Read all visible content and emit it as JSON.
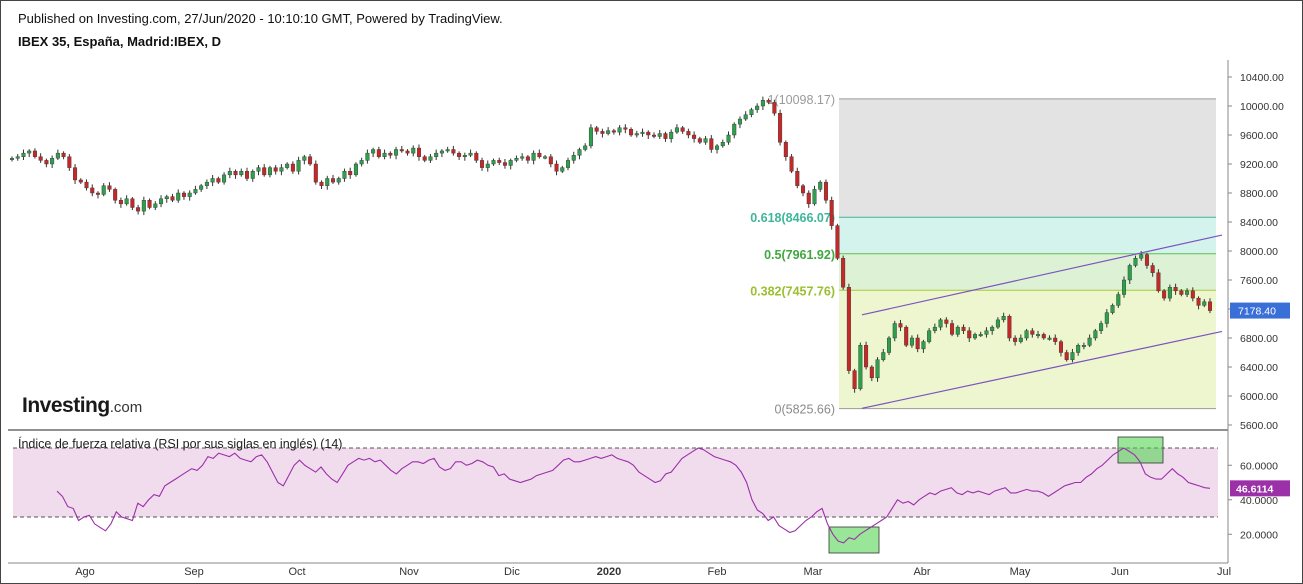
{
  "header": {
    "published": "Published on Investing.com, 27/Jun/2020 - 10:10:10 GMT, Powered by TradingView.",
    "symbol": "IBEX 35, España, Madrid:IBEX, D"
  },
  "branding": {
    "logo_main": "Investing",
    "logo_suffix": ".com"
  },
  "colors": {
    "up": "#2e9f4c",
    "down": "#c62828",
    "rsi_line": "#9b30a8",
    "rsi_band": "#f1dcee",
    "channel": "#7b52c0",
    "price_label": "#3b6fd8",
    "rsi_label": "#9b30a8"
  },
  "chart_data": [
    {
      "type": "candlestick",
      "title": "IBEX 35, España, Madrid:IBEX, D",
      "ylim": [
        5560,
        10500
      ],
      "y_ticks": [
        "10400.00",
        "10000.00",
        "9600.00",
        "9200.00",
        "8800.00",
        "8400.00",
        "8000.00",
        "7600.00",
        "7200.00",
        "6800.00",
        "6400.00",
        "6000.00",
        "5600.00"
      ],
      "x_ticks": [
        "Ago",
        "Sep",
        "Oct",
        "Nov",
        "Dic",
        "2020",
        "Feb",
        "Mar",
        "Abr",
        "May",
        "Jun",
        "Jul"
      ],
      "last_price_label": "7178.40",
      "fibonacci": [
        {
          "label": "1(10098.17)",
          "value": 10098.17
        },
        {
          "label": "0.618(8466.07)",
          "value": 8466.07
        },
        {
          "label": "0.5(7961.92)",
          "value": 7961.92
        },
        {
          "label": "0.382(7457.76)",
          "value": 7457.76
        },
        {
          "label": "0(5825.66)",
          "value": 5825.66
        }
      ],
      "channel": {
        "upper": [
          [
            "Mar 10",
            7120
          ],
          [
            "Jun 30",
            8220
          ]
        ],
        "lower": [
          [
            "Mar 12",
            5830
          ],
          [
            "Jun 30",
            6890
          ]
        ]
      },
      "closes_approx": [
        9280,
        9300,
        9350,
        9380,
        9300,
        9250,
        9200,
        9280,
        9350,
        9300,
        9150,
        8980,
        8950,
        8870,
        8800,
        8780,
        8900,
        8850,
        8700,
        8650,
        8720,
        8600,
        8550,
        8700,
        8600,
        8650,
        8720,
        8750,
        8700,
        8800,
        8750,
        8800,
        8850,
        8900,
        8950,
        9000,
        8950,
        9050,
        9100,
        9050,
        9100,
        9000,
        9100,
        9150,
        9050,
        9150,
        9100,
        9150,
        9200,
        9100,
        9250,
        9300,
        9200,
        8950,
        8900,
        9000,
        8950,
        9000,
        9100,
        9050,
        9200,
        9250,
        9350,
        9400,
        9300,
        9350,
        9320,
        9400,
        9380,
        9350,
        9420,
        9300,
        9250,
        9300,
        9350,
        9380,
        9400,
        9350,
        9300,
        9320,
        9350,
        9250,
        9150,
        9200,
        9250,
        9220,
        9180,
        9250,
        9280,
        9300,
        9250,
        9350,
        9300,
        9300,
        9200,
        9100,
        9150,
        9250,
        9320,
        9400,
        9450,
        9700,
        9650,
        9620,
        9660,
        9640,
        9700,
        9680,
        9600,
        9620,
        9640,
        9600,
        9580,
        9620,
        9550,
        9640,
        9700,
        9650,
        9600,
        9550,
        9500,
        9550,
        9400,
        9450,
        9500,
        9600,
        9750,
        9820,
        9880,
        9950,
        10000,
        10080,
        10050,
        9900,
        9500,
        9300,
        9100,
        8900,
        8800,
        8650,
        8850,
        8950,
        8700,
        8350,
        7900,
        7500,
        6350,
        6100,
        6700,
        6400,
        6250,
        6500,
        6600,
        6800,
        7000,
        6950,
        6700,
        6800,
        6650,
        6750,
        6900,
        6950,
        7050,
        7000,
        6850,
        6950,
        6900,
        6800,
        6850,
        6850,
        6900,
        6950,
        7050,
        7100,
        6800,
        6750,
        6800,
        6900,
        6850,
        6850,
        6800,
        6800,
        6750,
        6600,
        6500,
        6600,
        6700,
        6700,
        6800,
        6900,
        7000,
        7150,
        7250,
        7400,
        7600,
        7800,
        7900,
        7950,
        7800,
        7700,
        7450,
        7350,
        7500,
        7450,
        7400,
        7450,
        7350,
        7250,
        7300,
        7178
      ]
    },
    {
      "type": "line",
      "title": "Índice de fuerza relativa (RSI por sus siglas en inglés) (14)",
      "ylim": [
        10,
        75
      ],
      "y_ticks": [
        "60.0000",
        "40.0000",
        "20.0000"
      ],
      "overbought": 70,
      "oversold": 30,
      "last_value_label": "46.6114",
      "values": [
        45,
        42,
        36,
        35,
        28,
        30,
        31,
        26,
        24,
        22,
        26,
        33,
        30,
        29,
        28,
        38,
        36,
        40,
        43,
        42,
        48,
        50,
        52,
        54,
        56,
        58,
        57,
        60,
        65,
        64,
        67,
        66,
        65,
        67,
        64,
        63,
        62,
        65,
        66,
        62,
        56,
        50,
        48,
        54,
        60,
        63,
        60,
        58,
        56,
        59,
        55,
        52,
        50,
        55,
        60,
        62,
        64,
        63,
        64,
        62,
        63,
        60,
        57,
        55,
        58,
        60,
        62,
        62,
        61,
        63,
        64,
        59,
        57,
        58,
        62,
        62,
        60,
        61,
        63,
        62,
        60,
        59,
        54,
        55,
        52,
        51,
        50,
        51,
        52,
        54,
        55,
        56,
        57,
        60,
        63,
        64,
        62,
        62,
        63,
        64,
        65,
        64,
        65,
        66,
        64,
        63,
        62,
        60,
        56,
        54,
        52,
        50,
        51,
        55,
        56,
        60,
        64,
        66,
        68,
        70,
        69,
        67,
        65,
        64,
        63,
        62,
        60,
        56,
        50,
        40,
        34,
        32,
        28,
        30,
        25,
        23,
        21,
        22,
        25,
        28,
        30,
        33,
        35,
        26,
        20,
        16,
        15,
        18,
        17,
        20,
        22,
        24,
        26,
        28,
        30,
        35,
        40,
        38,
        39,
        37,
        40,
        42,
        44,
        43,
        45,
        46,
        47,
        44,
        43,
        45,
        44,
        45,
        44,
        43,
        45,
        46,
        47,
        44,
        44,
        45,
        46,
        45,
        45,
        44,
        42,
        44,
        46,
        48,
        49,
        50,
        50,
        53,
        55,
        58,
        60,
        63,
        66,
        68,
        70,
        68,
        66,
        62,
        55,
        53,
        52,
        52,
        55,
        58,
        55,
        53,
        50,
        49,
        48,
        47,
        46.61
      ]
    }
  ]
}
